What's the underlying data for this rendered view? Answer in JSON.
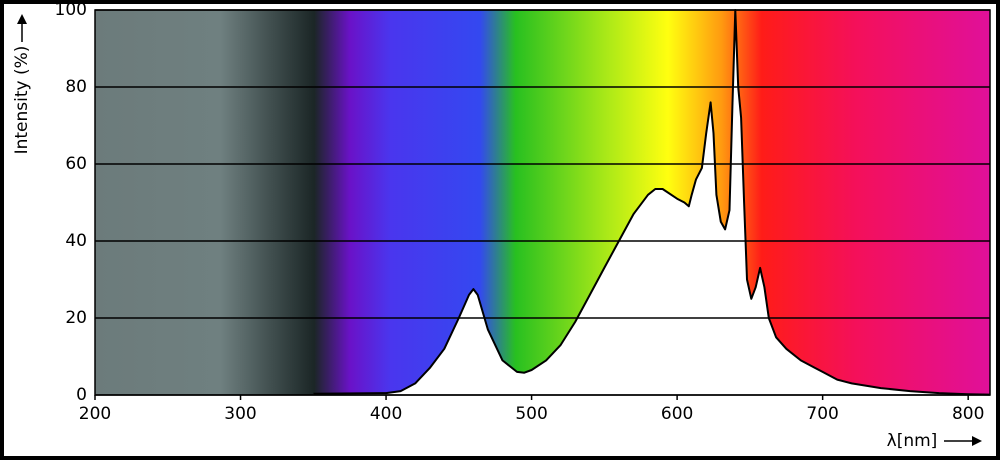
{
  "chart_data": {
    "type": "area",
    "ylabel": "Intensity (%)",
    "xlabel": "λ[nm]",
    "x": [
      350,
      400,
      410,
      420,
      430,
      440,
      450,
      457,
      460,
      463,
      470,
      480,
      490,
      495,
      500,
      510,
      520,
      530,
      540,
      550,
      560,
      570,
      580,
      585,
      590,
      600,
      605,
      608,
      610,
      613,
      617,
      620,
      623,
      625,
      627,
      630,
      633,
      636,
      638,
      640,
      642,
      644,
      646,
      648,
      651,
      654,
      657,
      660,
      663,
      668,
      675,
      685,
      695,
      700,
      710,
      720,
      740,
      760,
      780,
      800,
      815
    ],
    "values": [
      0.3,
      0.5,
      1,
      3,
      7,
      12,
      20,
      26,
      27.5,
      26,
      17,
      9,
      6,
      5.8,
      6.5,
      9,
      13,
      19,
      26,
      33,
      40,
      47,
      52,
      53.5,
      53.5,
      51,
      50,
      49,
      52,
      56,
      59,
      68,
      76,
      68,
      52,
      45,
      43,
      48,
      75,
      100,
      80,
      72,
      50,
      30,
      25,
      28,
      33,
      28,
      20,
      15,
      12,
      9,
      7,
      6,
      4,
      3,
      1.8,
      1,
      0.5,
      0.2,
      0.1
    ],
    "color": "#ffffff",
    "line_color": "#000000",
    "xlim": [
      200,
      815
    ],
    "ylim": [
      0,
      100
    ],
    "xticks": [
      200,
      300,
      400,
      500,
      600,
      700,
      800
    ],
    "yticks": [
      0,
      20,
      40,
      60,
      80,
      100
    ],
    "grid": true
  }
}
